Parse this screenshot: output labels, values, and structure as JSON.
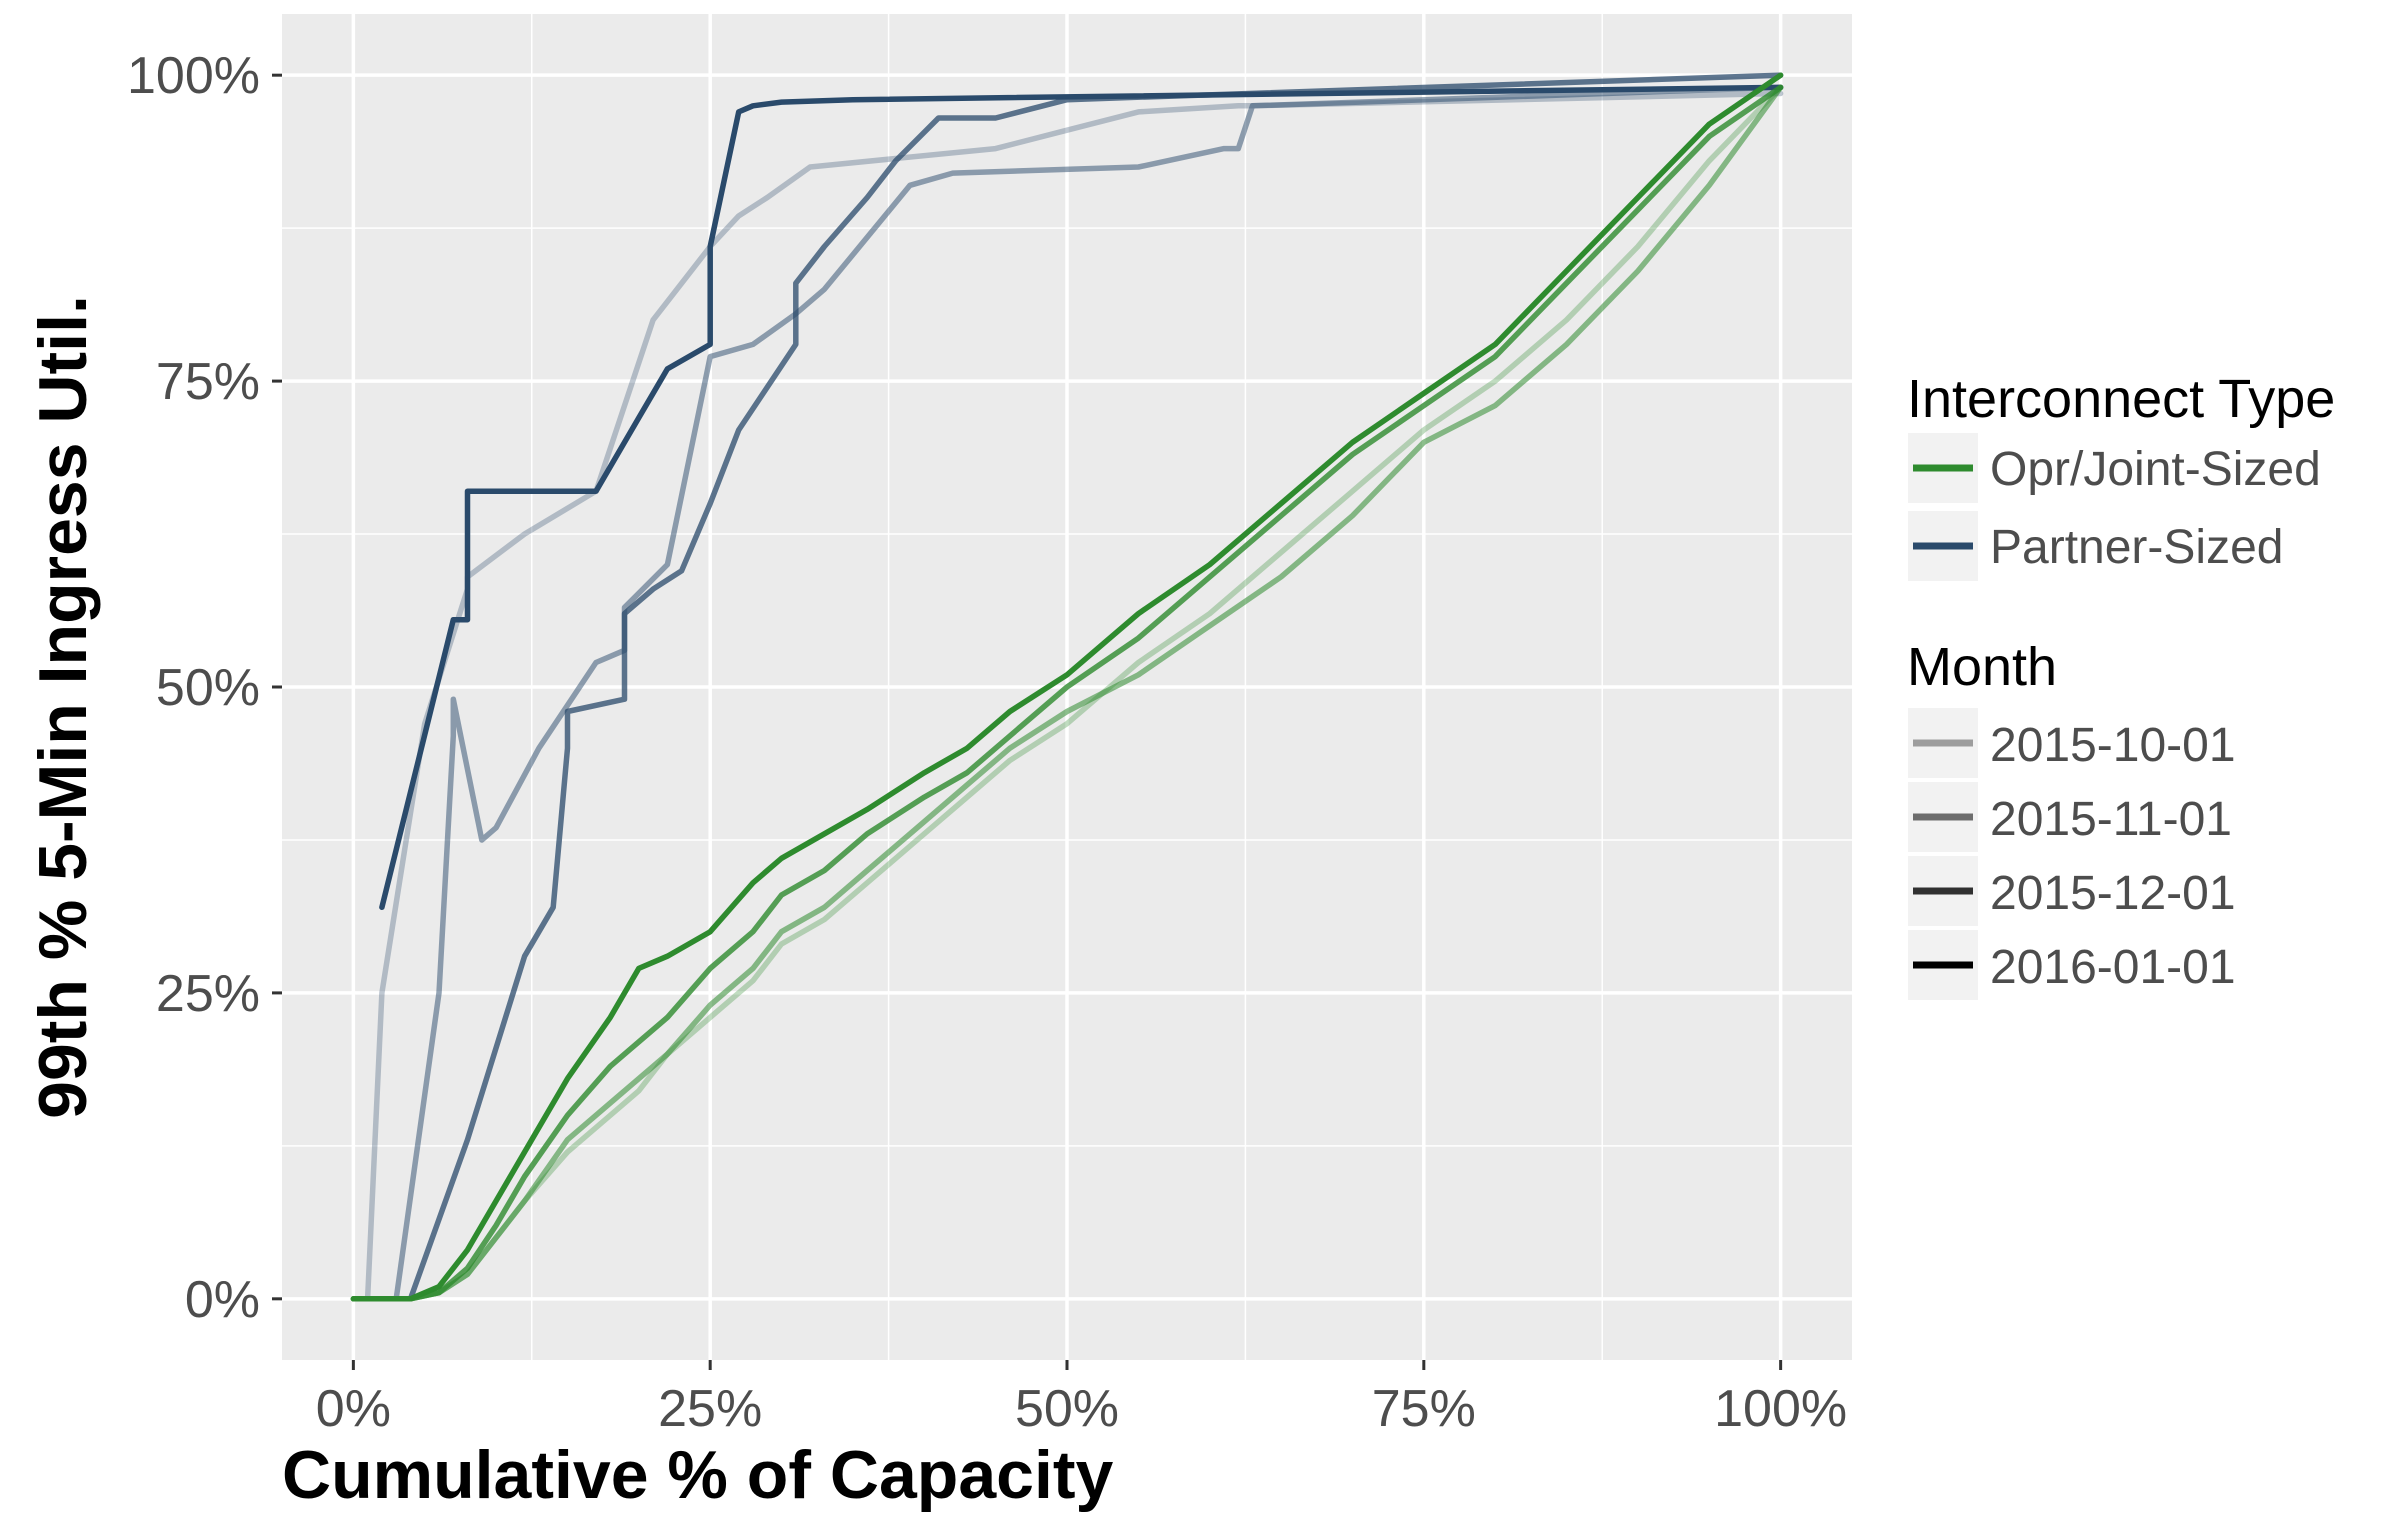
{
  "chart_data": {
    "type": "line",
    "title": "",
    "xlabel": "Cumulative % of Capacity",
    "ylabel": "99th % 5-Min Ingress Util.",
    "xlim": [
      -5,
      105
    ],
    "ylim": [
      -5,
      105
    ],
    "x_ticks": [
      0,
      25,
      50,
      75,
      100
    ],
    "x_tick_labels": [
      "0%",
      "25%",
      "50%",
      "75%",
      "100%"
    ],
    "y_ticks": [
      0,
      25,
      50,
      75,
      100
    ],
    "y_tick_labels": [
      "0%",
      "25%",
      "50%",
      "75%",
      "100%"
    ],
    "grid": true,
    "legend_position": "right",
    "legend": {
      "groups": [
        {
          "title": "Interconnect Type",
          "entries": [
            {
              "label": "Opr/Joint-Sized",
              "color": "#2e8b2e"
            },
            {
              "label": "Partner-Sized",
              "color": "#2a4a6b"
            }
          ]
        },
        {
          "title": "Month",
          "entries": [
            {
              "label": "2015-10-01",
              "color": "#000000",
              "opacity": 0.35
            },
            {
              "label": "2015-11-01",
              "color": "#000000",
              "opacity": 0.55
            },
            {
              "label": "2015-12-01",
              "color": "#000000",
              "opacity": 0.8
            },
            {
              "label": "2016-01-01",
              "color": "#000000",
              "opacity": 1.0
            }
          ]
        }
      ]
    },
    "series": [
      {
        "interconnect": "Partner-Sized",
        "month": "2015-10-01",
        "color": "#2a4a6b",
        "opacity": 0.3,
        "x": [
          1,
          2,
          5,
          8,
          8,
          12,
          17,
          21,
          22,
          25,
          27,
          29,
          32,
          45,
          50,
          55,
          62,
          63,
          100
        ],
        "y": [
          0,
          25,
          47,
          58,
          59,
          62.5,
          66,
          80,
          81.5,
          86,
          88.5,
          90,
          92.5,
          94,
          95.5,
          97,
          97.5,
          97.5,
          98.5
        ]
      },
      {
        "interconnect": "Partner-Sized",
        "month": "2015-11-01",
        "color": "#2a4a6b",
        "opacity": 0.5,
        "x": [
          2,
          3,
          6,
          7,
          7,
          9,
          10,
          13,
          17,
          19,
          19,
          22,
          25,
          28,
          31,
          33,
          39,
          42,
          55,
          61,
          62,
          63,
          100
        ],
        "y": [
          0,
          0,
          25,
          46,
          49,
          37.5,
          38.5,
          45,
          52,
          53,
          56.5,
          60,
          77,
          78,
          80.5,
          82.5,
          91,
          92,
          92.5,
          94,
          94,
          97.5,
          99
        ]
      },
      {
        "interconnect": "Partner-Sized",
        "month": "2015-12-01",
        "color": "#2a4a6b",
        "opacity": 0.75,
        "x": [
          4,
          8,
          12,
          14,
          15,
          15,
          19,
          19,
          21,
          23,
          25,
          27,
          31,
          31,
          33,
          36,
          38,
          41,
          45,
          50,
          100
        ],
        "y": [
          0,
          13,
          28,
          32,
          45,
          48,
          49,
          56,
          58,
          59.5,
          65,
          71,
          78,
          83,
          86,
          90,
          93,
          96.5,
          96.5,
          98,
          100
        ]
      },
      {
        "interconnect": "Partner-Sized",
        "month": "2016-01-01",
        "color": "#2a4a6b",
        "opacity": 1.0,
        "x": [
          2,
          7,
          8,
          8,
          12,
          17,
          20,
          22,
          25,
          25,
          27,
          28,
          30,
          35,
          100
        ],
        "y": [
          32,
          55.5,
          55.5,
          66,
          66,
          66,
          72,
          76,
          78,
          86,
          97,
          97.5,
          97.8,
          98,
          99
        ]
      },
      {
        "interconnect": "Opr/Joint-Sized",
        "month": "2015-10-01",
        "color": "#2e8b2e",
        "opacity": 0.3,
        "x": [
          0,
          4,
          6,
          8,
          10,
          12,
          15,
          18,
          20,
          22,
          25,
          28,
          30,
          33,
          36,
          40,
          43,
          46,
          50,
          55,
          60,
          65,
          70,
          75,
          80,
          85,
          90,
          95,
          100
        ],
        "y": [
          0,
          0,
          0.5,
          2,
          5,
          8,
          12,
          15,
          17,
          20,
          23,
          26,
          29,
          31,
          34,
          38,
          41,
          44,
          47,
          52,
          56,
          61,
          66,
          71,
          75,
          80,
          86,
          93,
          99
        ]
      },
      {
        "interconnect": "Opr/Joint-Sized",
        "month": "2015-11-01",
        "color": "#2e8b2e",
        "opacity": 0.55,
        "x": [
          0,
          4,
          6,
          8,
          10,
          12,
          15,
          18,
          20,
          22,
          25,
          28,
          30,
          33,
          36,
          40,
          43,
          46,
          50,
          55,
          60,
          65,
          70,
          75,
          80,
          85,
          90,
          95,
          100
        ],
        "y": [
          0,
          0,
          0.5,
          2,
          5,
          8,
          13,
          16,
          18,
          20,
          24,
          27,
          30,
          32,
          35,
          39,
          42,
          45,
          48,
          51,
          55,
          59,
          64,
          70,
          73,
          78,
          84,
          91,
          99
        ]
      },
      {
        "interconnect": "Opr/Joint-Sized",
        "month": "2015-12-01",
        "color": "#2e8b2e",
        "opacity": 0.8,
        "x": [
          0,
          4,
          6,
          8,
          10,
          12,
          15,
          18,
          20,
          22,
          25,
          28,
          30,
          33,
          36,
          40,
          43,
          46,
          50,
          55,
          60,
          65,
          70,
          75,
          80,
          85,
          90,
          95,
          100
        ],
        "y": [
          0,
          0,
          0.5,
          2.5,
          6,
          10,
          15,
          19,
          21,
          23,
          27,
          30,
          33,
          35,
          38,
          41,
          43,
          46,
          50,
          54,
          59,
          64,
          69,
          73,
          77,
          83,
          89,
          95,
          99
        ]
      },
      {
        "interconnect": "Opr/Joint-Sized",
        "month": "2016-01-01",
        "color": "#2e8b2e",
        "opacity": 1.0,
        "x": [
          0,
          4,
          6,
          8,
          10,
          12,
          15,
          18,
          20,
          22,
          25,
          28,
          30,
          33,
          36,
          40,
          43,
          46,
          50,
          55,
          60,
          65,
          70,
          75,
          80,
          85,
          90,
          95,
          100
        ],
        "y": [
          0,
          0,
          1,
          4,
          8,
          12,
          18,
          23,
          27,
          28,
          30,
          34,
          36,
          38,
          40,
          43,
          45,
          48,
          51,
          56,
          60,
          65,
          70,
          74,
          78,
          84,
          90,
          96,
          100
        ]
      }
    ]
  }
}
